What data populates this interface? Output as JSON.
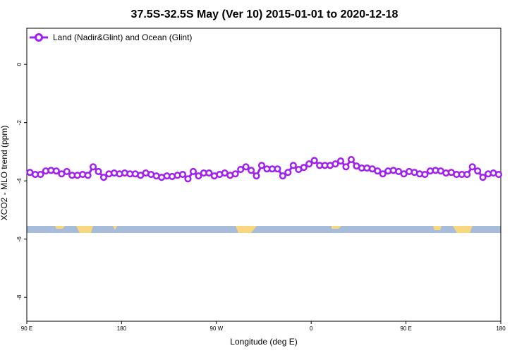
{
  "chart_data": {
    "type": "line",
    "title": "37.5S-32.5S May (Ver 10)   2015-01-01 to 2020-12-18",
    "x_label": "Longitude (deg E)",
    "y_label": "XCO2 - MLO trend (ppm)",
    "xlim": [
      90,
      540
    ],
    "ylim": [
      -8.82,
      1.24
    ],
    "xticks": [
      {
        "value": 90,
        "label": "90 E"
      },
      180,
      {
        "value": 270,
        "label": "90 W"
      },
      {
        "value": 360,
        "label": "0"
      },
      {
        "value": 450,
        "label": "90 E"
      },
      {
        "value": 540,
        "label": "180"
      }
    ],
    "yticks": [
      0,
      -2,
      -4,
      -6,
      -8
    ],
    "legend": "top-left",
    "x": [
      93,
      98,
      103,
      108,
      113,
      118,
      123,
      128,
      133,
      138,
      143,
      148,
      153,
      158,
      163,
      168,
      173,
      178,
      183,
      188,
      193,
      198,
      203,
      208,
      213,
      218,
      223,
      228,
      233,
      238,
      243,
      248,
      253,
      258,
      263,
      268,
      273,
      278,
      283,
      288,
      293,
      298,
      303,
      308,
      313,
      318,
      323,
      328,
      333,
      338,
      343,
      348,
      353,
      358,
      363,
      368,
      373,
      378,
      383,
      388,
      393,
      398,
      403,
      408,
      413,
      418,
      423,
      428,
      433,
      438,
      443,
      448,
      453,
      458,
      463,
      468,
      473,
      478,
      483,
      488,
      493,
      498,
      503,
      508,
      513,
      518,
      523,
      528,
      533,
      538
    ],
    "series": [
      {
        "name": "Land (Nadir&Glint) and Ocean (Glint)",
        "color": "#a020f0",
        "values": [
          -3.71,
          -3.78,
          -3.78,
          -3.66,
          -3.64,
          -3.66,
          -3.76,
          -3.68,
          -3.81,
          -3.81,
          -3.78,
          -3.81,
          -3.52,
          -3.68,
          -3.88,
          -3.76,
          -3.73,
          -3.76,
          -3.73,
          -3.76,
          -3.76,
          -3.81,
          -3.73,
          -3.78,
          -3.83,
          -3.88,
          -3.83,
          -3.85,
          -3.81,
          -3.78,
          -3.93,
          -3.68,
          -3.83,
          -3.73,
          -3.73,
          -3.83,
          -3.78,
          -3.73,
          -3.81,
          -3.76,
          -3.61,
          -3.52,
          -3.64,
          -3.83,
          -3.47,
          -3.59,
          -3.59,
          -3.59,
          -3.83,
          -3.71,
          -3.47,
          -3.61,
          -3.54,
          -3.42,
          -3.3,
          -3.47,
          -3.47,
          -3.47,
          -3.42,
          -3.32,
          -3.52,
          -3.27,
          -3.49,
          -3.56,
          -3.56,
          -3.59,
          -3.66,
          -3.76,
          -3.66,
          -3.64,
          -3.68,
          -3.76,
          -3.68,
          -3.71,
          -3.76,
          -3.78,
          -3.66,
          -3.64,
          -3.66,
          -3.73,
          -3.71,
          -3.78,
          -3.78,
          -3.78,
          -3.52,
          -3.66,
          -3.88,
          -3.76,
          -3.73,
          -3.78
        ]
      }
    ]
  }
}
